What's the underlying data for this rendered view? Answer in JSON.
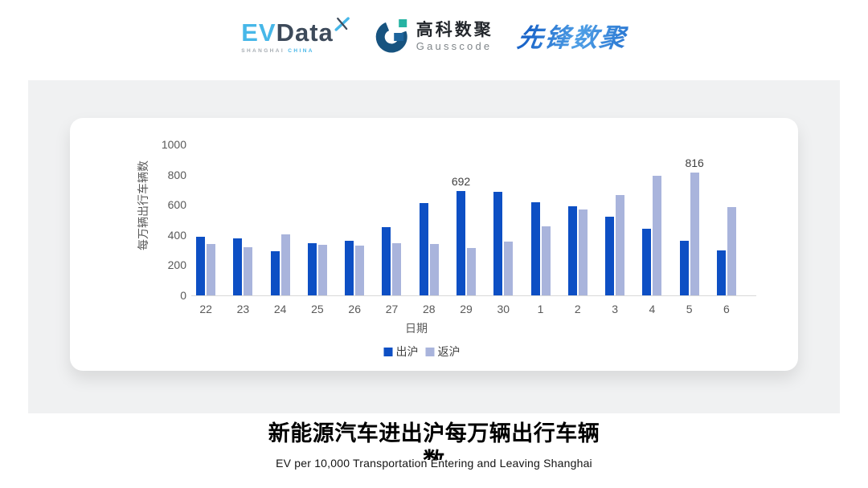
{
  "header": {
    "logos": {
      "evdata": {
        "ev": "EV",
        "data": "Data",
        "sub_left": "SHANGHAI",
        "sub_right": "CHINA"
      },
      "gausscode": {
        "cn": "高科数聚",
        "en": "Gausscode"
      },
      "xianfeng": {
        "text": "先锋数聚"
      }
    }
  },
  "chart_data": {
    "type": "bar",
    "categories": [
      "22",
      "23",
      "24",
      "25",
      "26",
      "27",
      "28",
      "29",
      "30",
      "1",
      "2",
      "3",
      "4",
      "5",
      "6"
    ],
    "series": [
      {
        "name": "出沪",
        "color": "#0d4fc4",
        "values": [
          390,
          380,
          293,
          348,
          362,
          450,
          612,
          692,
          684,
          615,
          590,
          520,
          440,
          360,
          300
        ]
      },
      {
        "name": "返沪",
        "color": "#a9b4dc",
        "values": [
          340,
          320,
          403,
          337,
          330,
          347,
          340,
          315,
          355,
          455,
          567,
          665,
          790,
          816,
          587
        ]
      }
    ],
    "annotations": [
      {
        "series": 0,
        "index": 7,
        "text": "692"
      },
      {
        "series": 1,
        "index": 13,
        "text": "816"
      }
    ],
    "ylabel": "每万辆出行车辆数",
    "xlabel": "日期",
    "ylim": [
      0,
      1000
    ],
    "yticks": [
      0,
      200,
      400,
      600,
      800,
      1000
    ],
    "grid": false,
    "legend_position": "bottom"
  },
  "footer": {
    "title": "新能源汽车进出沪每万辆出行车辆数",
    "subtitle": "EV per 10,000 Transportation Entering and Leaving Shanghai"
  }
}
